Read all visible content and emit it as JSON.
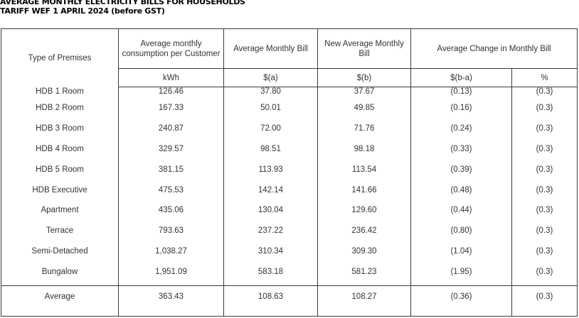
{
  "title": {
    "line1": "AVERAGE MONTHLY ELECTRICITY BILLS FOR HOUSEHOLDS",
    "line2": "TARIFF WEF 1 APRIL 2024 (before GST)"
  },
  "headers": {
    "premises": "Type of Premises",
    "consumption": "Average monthly consumption per Customer",
    "avg_bill": "Average Monthly Bill",
    "new_bill": "New Average Monthly Bill",
    "change": "Average Change in Monthly Bill"
  },
  "units": {
    "consumption": "kWh",
    "avg_bill": "$(a)",
    "new_bill": "$(b)",
    "change_abs": "$(b-a)",
    "change_pct": "%"
  },
  "rows": [
    {
      "premises": "HDB 1 Room",
      "consumption": "126.46",
      "avg_bill": "37.80",
      "new_bill": "37.67",
      "change_abs": "(0.13)",
      "change_pct": "(0.3)"
    },
    {
      "premises": "HDB 2 Room",
      "consumption": "167.33",
      "avg_bill": "50.01",
      "new_bill": "49.85",
      "change_abs": "(0.16)",
      "change_pct": "(0.3)"
    },
    {
      "premises": "HDB 3 Room",
      "consumption": "240.87",
      "avg_bill": "72.00",
      "new_bill": "71.76",
      "change_abs": "(0.24)",
      "change_pct": "(0.3)"
    },
    {
      "premises": "HDB 4 Room",
      "consumption": "329.57",
      "avg_bill": "98.51",
      "new_bill": "98.18",
      "change_abs": "(0.33)",
      "change_pct": "(0.3)"
    },
    {
      "premises": "HDB 5 Room",
      "consumption": "381.15",
      "avg_bill": "113.93",
      "new_bill": "113.54",
      "change_abs": "(0.39)",
      "change_pct": "(0.3)"
    },
    {
      "premises": "HDB Executive",
      "consumption": "475.53",
      "avg_bill": "142.14",
      "new_bill": "141.66",
      "change_abs": "(0.48)",
      "change_pct": "(0.3)"
    },
    {
      "premises": "Apartment",
      "consumption": "435.06",
      "avg_bill": "130.04",
      "new_bill": "129.60",
      "change_abs": "(0.44)",
      "change_pct": "(0.3)"
    },
    {
      "premises": "Terrace",
      "consumption": "793.63",
      "avg_bill": "237.22",
      "new_bill": "236.42",
      "change_abs": "(0.80)",
      "change_pct": "(0.3)"
    },
    {
      "premises": "Semi-Detached",
      "consumption": "1,038.27",
      "avg_bill": "310.34",
      "new_bill": "309.30",
      "change_abs": "(1.04)",
      "change_pct": "(0.3)"
    },
    {
      "premises": "Bungalow",
      "consumption": "1,951.09",
      "avg_bill": "583.18",
      "new_bill": "581.23",
      "change_abs": "(1.95)",
      "change_pct": "(0.3)"
    }
  ],
  "average": {
    "premises": "Average",
    "consumption": "363.43",
    "avg_bill": "108.63",
    "new_bill": "108.27",
    "change_abs": "(0.36)",
    "change_pct": "(0.3)"
  }
}
